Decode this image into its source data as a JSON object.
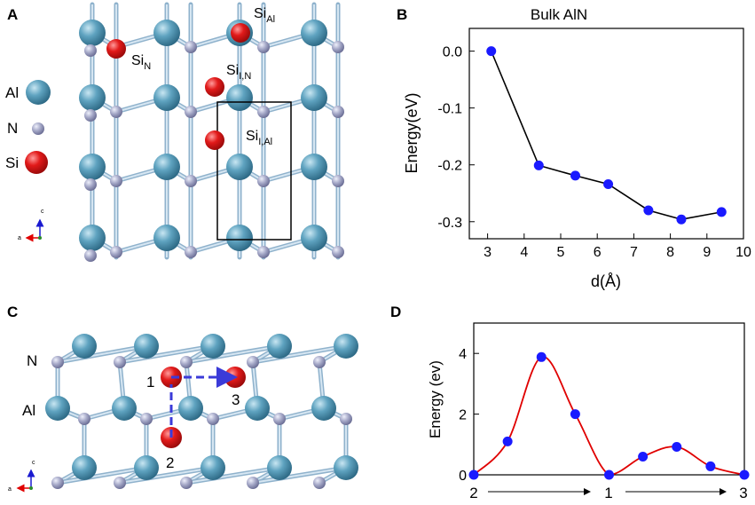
{
  "panels": {
    "A": {
      "label": "A",
      "legend": [
        {
          "name": "Al",
          "color": "#5fa3c0"
        },
        {
          "name": "N",
          "color": "#a6a9c8"
        },
        {
          "name": "Si",
          "color": "#e21a1a"
        }
      ],
      "site_labels": [
        {
          "base": "Si",
          "sub": "Al"
        },
        {
          "base": "Si",
          "sub": "N"
        },
        {
          "base": "Si",
          "sub": "I,N"
        },
        {
          "base": "Si",
          "sub": "I,Al"
        }
      ],
      "axes": {
        "c": "c",
        "a": "a"
      }
    },
    "B": {
      "label": "B"
    },
    "C": {
      "label": "C",
      "row_labels": [
        "N",
        "Al"
      ],
      "site_numbers": [
        "1",
        "2",
        "3"
      ],
      "axes": {
        "c": "c",
        "a": "a"
      }
    },
    "D": {
      "label": "D"
    }
  },
  "chart_data": [
    {
      "panel": "B",
      "type": "line",
      "title": "Bulk AlN",
      "xlabel": "d(Å)",
      "ylabel": "Energy(eV)",
      "xlim": [
        2.5,
        10
      ],
      "ylim": [
        -0.33,
        0.04
      ],
      "xticks": [
        3,
        4,
        5,
        6,
        7,
        8,
        9,
        10
      ],
      "yticks": [
        0.0,
        -0.1,
        -0.2,
        -0.3
      ],
      "ytick_labels": [
        "0.0",
        "-0.1",
        "-0.2",
        "-0.3"
      ],
      "x": [
        3.1,
        4.4,
        5.4,
        6.3,
        7.4,
        8.3,
        9.4
      ],
      "y": [
        0.0,
        -0.201,
        -0.219,
        -0.234,
        -0.28,
        -0.296,
        -0.283
      ],
      "marker_color": "#1a1aff",
      "line_color": "#000000",
      "grid": false
    },
    {
      "panel": "D",
      "type": "line",
      "title": "",
      "xlabel": "",
      "ylabel": "Energy (ev)",
      "ylim": [
        0,
        5
      ],
      "yticks": [
        0,
        2,
        4
      ],
      "ytick_labels": [
        "0",
        "2",
        "4"
      ],
      "path_labels": [
        "2",
        "1",
        "3"
      ],
      "x": [
        0,
        1,
        2,
        3,
        4,
        5,
        6,
        7,
        8
      ],
      "y": [
        0,
        1.1,
        3.88,
        2.0,
        0,
        0.6,
        0.92,
        0.28,
        0
      ],
      "curve": "smooth",
      "marker_color": "#1a1aff",
      "line_color": "#e00000",
      "grid": false
    }
  ]
}
